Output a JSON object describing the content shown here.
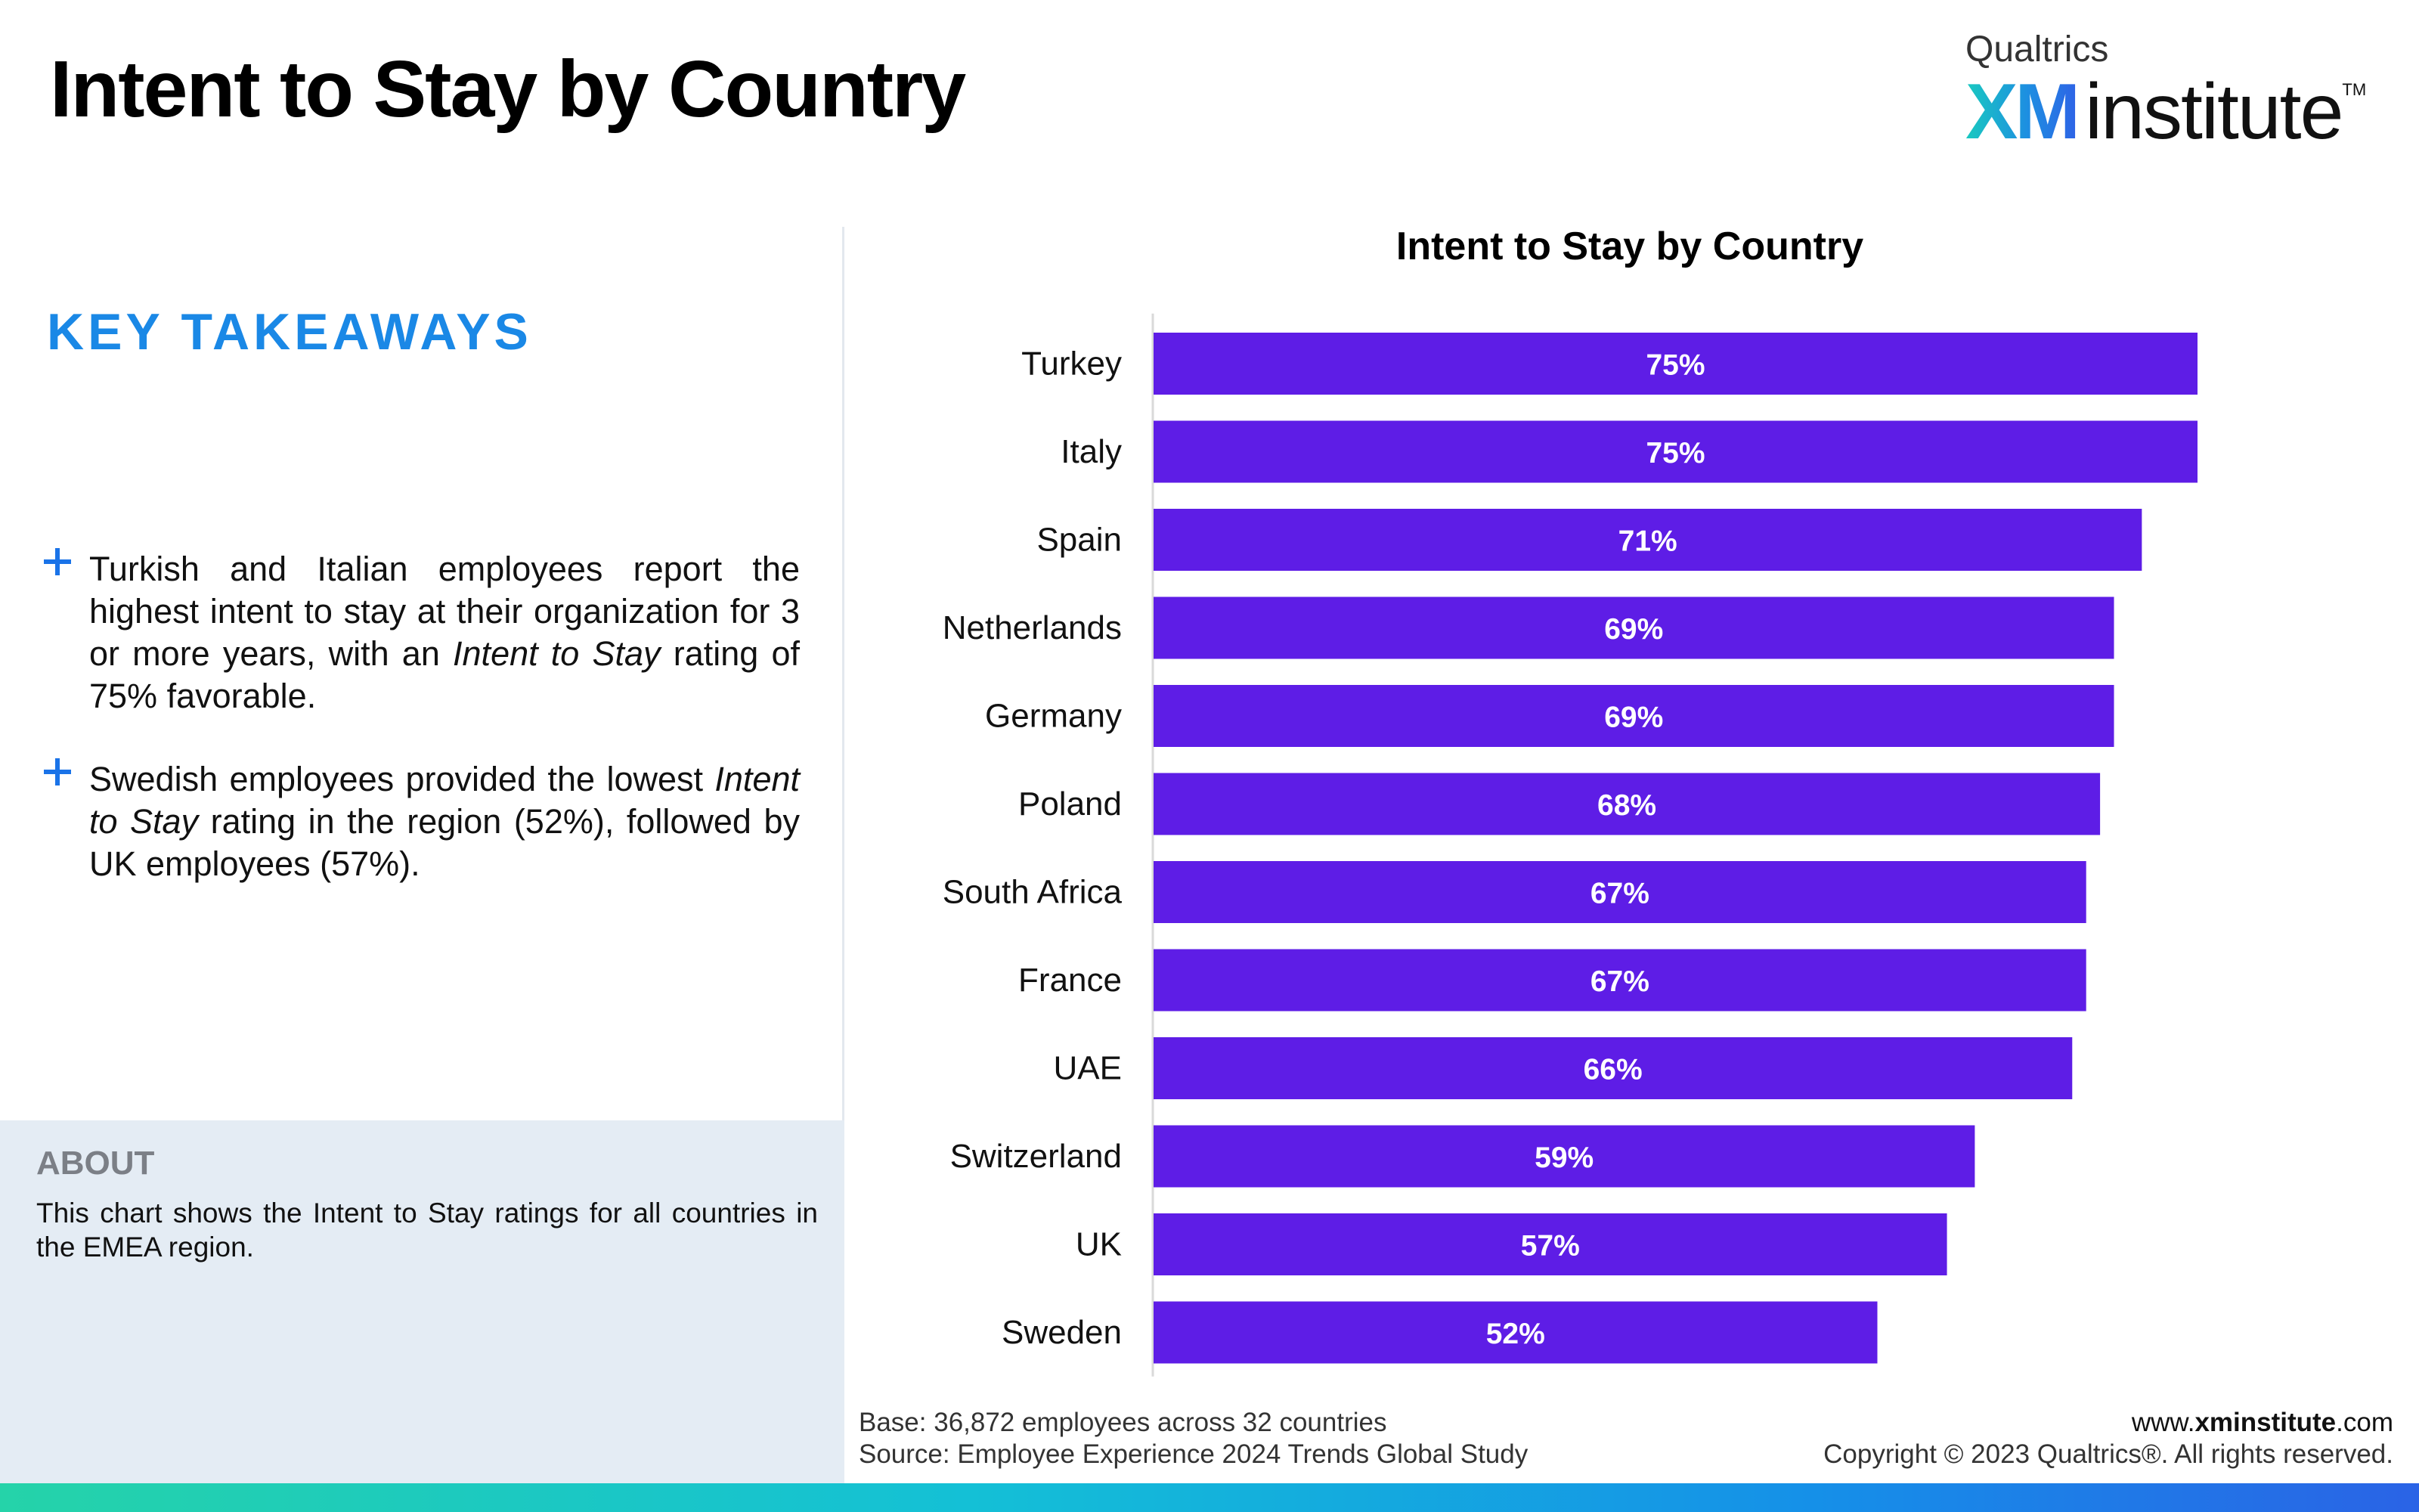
{
  "header": {
    "title": "Intent to Stay by Country",
    "logo": {
      "brand": "Qualtrics",
      "mark": "XM",
      "word": "institute",
      "trademark": "TM"
    }
  },
  "takeaways": {
    "title": "KEY TAKEAWAYS",
    "items": [
      {
        "before": "Turkish and Italian employees report the highest intent to stay at their organization for 3 or more years, with an ",
        "emphasis": "Intent to Stay",
        "after": " rating of 75% favorable."
      },
      {
        "before": "Swedish employees provided the lowest ",
        "emphasis": "Intent to Stay",
        "after": " rating in the region (52%), followed by UK employees (57%)."
      }
    ]
  },
  "about": {
    "title": "ABOUT",
    "text": "This chart shows the Intent to Stay ratings for all countries in the EMEA region."
  },
  "chart_data": {
    "type": "bar",
    "orientation": "horizontal",
    "title": "Intent to Stay by Country",
    "categories": [
      "Turkey",
      "Italy",
      "Spain",
      "Netherlands",
      "Germany",
      "Poland",
      "South Africa",
      "France",
      "UAE",
      "Switzerland",
      "UK",
      "Sweden"
    ],
    "values": [
      75,
      75,
      71,
      69,
      69,
      68,
      67,
      67,
      66,
      59,
      57,
      52
    ],
    "value_labels": [
      "75%",
      "75%",
      "71%",
      "69%",
      "69%",
      "68%",
      "67%",
      "67%",
      "66%",
      "59%",
      "57%",
      "52%"
    ],
    "xlim": [
      0,
      75
    ],
    "bar_color": "#5e1de6",
    "grid": false,
    "legend": "none"
  },
  "footer": {
    "base": "Base: 36,872 employees across 32 countries",
    "source": "Source: Employee Experience 2024 Trends Global Study",
    "url_prefix": "www.",
    "url_bold": "xminstitute",
    "url_suffix": ".com",
    "copyright": "Copyright © 2023 Qualtrics®. All rights reserved."
  },
  "colors": {
    "accent": "#1a88e6",
    "bar": "#5e1de6",
    "about_bg": "#e4ecf4"
  }
}
